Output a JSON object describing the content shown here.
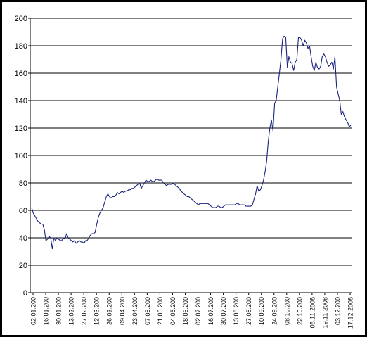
{
  "chart_data": {
    "type": "line",
    "title": "",
    "xlabel": "",
    "ylabel": "",
    "ylim": [
      0,
      200
    ],
    "y_ticks": [
      0,
      20,
      40,
      60,
      80,
      100,
      120,
      140,
      160,
      180,
      200
    ],
    "grid": "horizontal",
    "legend": "none",
    "x_tick_labels": [
      "02.01.200",
      "16.01.200",
      "30.01.200",
      "13.02.200",
      "27.02.200",
      "12.03.200",
      "26.03.200",
      "09.04.200",
      "23.04.200",
      "07.05.200",
      "21.05.200",
      "04.06.200",
      "18.06.200",
      "02.07.200",
      "16.07.200",
      "30.07.200",
      "13.08.200",
      "27.08.200",
      "10.09.200",
      "24.09.200",
      "08.10.200",
      "22.10.200",
      "05.11.2008",
      "19.11.2008",
      "03.12.200",
      "17.12.2008"
    ],
    "line_color": "#1a237e",
    "series": [
      {
        "values": [
          62,
          58,
          56,
          54,
          52,
          51,
          50,
          50,
          46,
          38,
          39,
          41,
          40,
          32,
          40,
          38,
          40,
          39,
          38,
          38,
          40,
          39,
          43,
          40,
          39,
          38,
          37,
          38,
          36,
          37,
          38,
          37,
          37,
          36,
          38,
          38,
          40,
          42,
          43,
          43,
          44,
          50,
          55,
          58,
          60,
          62,
          66,
          70,
          72,
          70,
          69,
          70,
          70,
          71,
          73,
          72,
          73,
          74,
          73,
          74,
          74,
          75,
          75,
          76,
          76,
          77,
          78,
          79,
          80,
          76,
          78,
          80,
          82,
          81,
          81,
          82,
          81,
          81,
          82,
          83,
          82,
          82,
          82,
          80,
          79,
          78,
          79,
          79,
          79,
          80,
          79,
          78,
          77,
          76,
          74,
          73,
          72,
          71,
          70,
          70,
          69,
          68,
          67,
          66,
          65,
          64,
          65,
          65,
          65,
          65,
          65,
          65,
          64,
          63,
          62,
          62,
          62,
          63,
          63,
          62,
          62,
          63,
          64,
          64,
          64,
          64,
          64,
          64,
          64,
          65,
          65,
          64,
          64,
          64,
          64,
          63,
          63,
          63,
          63,
          64,
          68,
          72,
          78,
          74,
          75,
          78,
          82,
          88,
          96,
          110,
          120,
          126,
          118,
          138,
          140,
          150,
          160,
          170,
          185,
          187,
          186,
          164,
          172,
          168,
          167,
          162,
          168,
          170,
          186,
          186,
          184,
          180,
          184,
          182,
          178,
          180,
          172,
          165,
          162,
          168,
          164,
          163,
          165,
          172,
          174,
          172,
          168,
          165,
          166,
          168,
          163,
          172,
          150,
          145,
          140,
          130,
          132,
          128,
          126,
          124,
          121,
          122
        ]
      }
    ]
  }
}
